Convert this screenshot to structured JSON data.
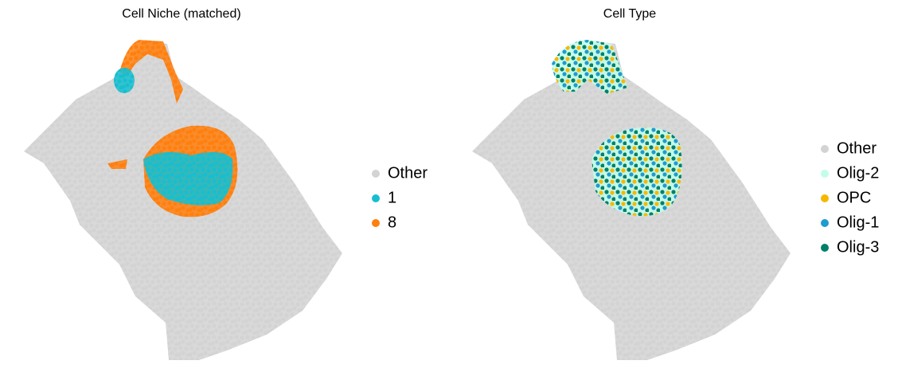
{
  "chart_data": [
    {
      "type": "scatter",
      "title": "Cell Niche (matched)",
      "series": [
        {
          "name": "Other",
          "color": "#d3d3d3"
        },
        {
          "name": "1",
          "color": "#17becf"
        },
        {
          "name": "8",
          "color": "#ff7f0e"
        }
      ]
    },
    {
      "type": "scatter",
      "title": "Cell Type",
      "series": [
        {
          "name": "Other",
          "color": "#d3d3d3"
        },
        {
          "name": "Olig-2",
          "color": "#c2fde8"
        },
        {
          "name": "OPC",
          "color": "#f5b800"
        },
        {
          "name": "Olig-1",
          "color": "#1f9bd0"
        },
        {
          "name": "Olig-3",
          "color": "#00806a"
        }
      ]
    }
  ]
}
